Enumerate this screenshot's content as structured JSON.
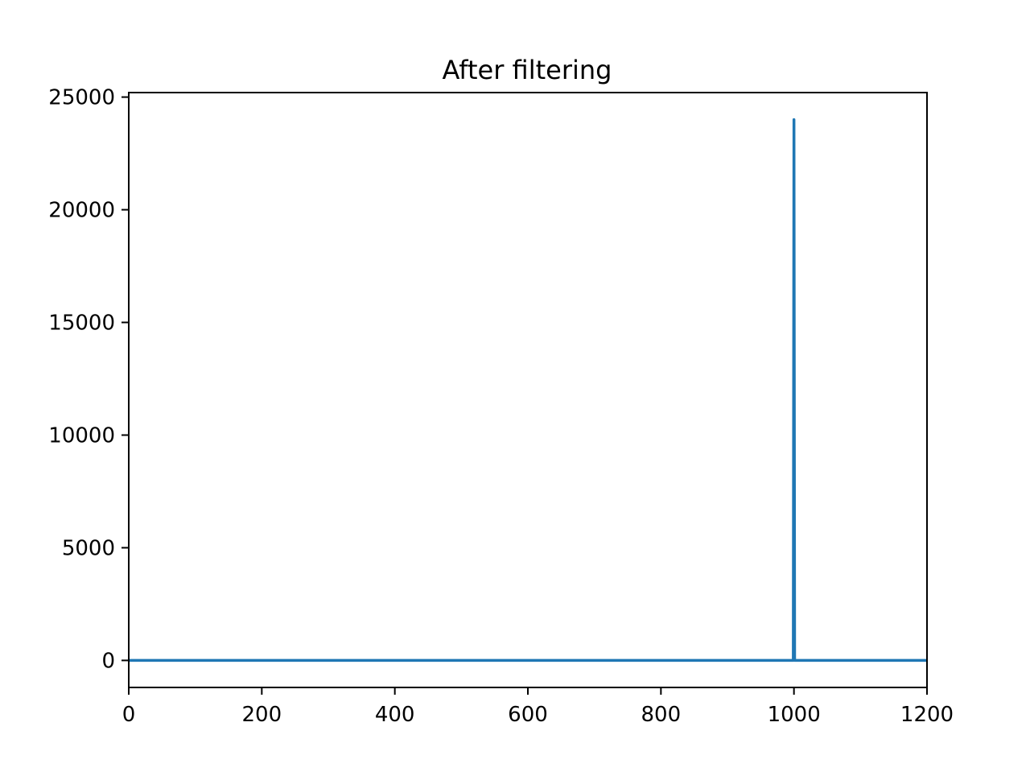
{
  "chart_data": {
    "type": "line",
    "title": "After filtering",
    "xlabel": "",
    "ylabel": "",
    "xlim": [
      0,
      1200
    ],
    "ylim": [
      -1200,
      25200
    ],
    "xticks": [
      0,
      200,
      400,
      600,
      800,
      1000,
      1200
    ],
    "yticks": [
      0,
      5000,
      10000,
      15000,
      20000,
      25000
    ],
    "grid": false,
    "legend": "none",
    "series": [
      {
        "color": "#1f77b4",
        "points": [
          [
            0,
            0
          ],
          [
            999,
            0
          ],
          [
            1000,
            24000
          ],
          [
            1001,
            0
          ],
          [
            1200,
            0
          ]
        ]
      }
    ]
  }
}
